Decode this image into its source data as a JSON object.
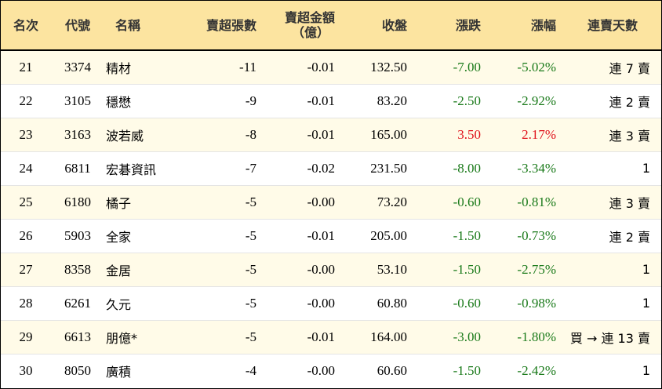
{
  "headers": {
    "rank": "名次",
    "code": "代號",
    "name": "名稱",
    "net_shares": "賣超張數",
    "net_amount_line1": "賣超金額",
    "net_amount_line2": "（億）",
    "close": "收盤",
    "change": "漲跌",
    "change_pct": "漲幅",
    "consecutive_days": "連賣天數"
  },
  "colors": {
    "header_bg": "#fce4a0",
    "row_alt_bg": "#fffbe8",
    "up": "#e0101a",
    "down": "#1a7a1a"
  },
  "rows": [
    {
      "rank": "21",
      "code": "3374",
      "name": "精材",
      "net_shares": "-11",
      "net_amount": "-0.01",
      "close": "132.50",
      "change": "-7.00",
      "change_pct": "-5.02%",
      "days": "連 7 賣",
      "dir": "down"
    },
    {
      "rank": "22",
      "code": "3105",
      "name": "穩懋",
      "net_shares": "-9",
      "net_amount": "-0.01",
      "close": "83.20",
      "change": "-2.50",
      "change_pct": "-2.92%",
      "days": "連 2 賣",
      "dir": "down"
    },
    {
      "rank": "23",
      "code": "3163",
      "name": "波若威",
      "net_shares": "-8",
      "net_amount": "-0.01",
      "close": "165.00",
      "change": "3.50",
      "change_pct": "2.17%",
      "days": "連 3 賣",
      "dir": "up"
    },
    {
      "rank": "24",
      "code": "6811",
      "name": "宏碁資訊",
      "net_shares": "-7",
      "net_amount": "-0.02",
      "close": "231.50",
      "change": "-8.00",
      "change_pct": "-3.34%",
      "days": "1",
      "dir": "down"
    },
    {
      "rank": "25",
      "code": "6180",
      "name": "橘子",
      "net_shares": "-5",
      "net_amount": "-0.00",
      "close": "73.20",
      "change": "-0.60",
      "change_pct": "-0.81%",
      "days": "連 3 賣",
      "dir": "down"
    },
    {
      "rank": "26",
      "code": "5903",
      "name": "全家",
      "net_shares": "-5",
      "net_amount": "-0.01",
      "close": "205.00",
      "change": "-1.50",
      "change_pct": "-0.73%",
      "days": "連 2 賣",
      "dir": "down"
    },
    {
      "rank": "27",
      "code": "8358",
      "name": "金居",
      "net_shares": "-5",
      "net_amount": "-0.00",
      "close": "53.10",
      "change": "-1.50",
      "change_pct": "-2.75%",
      "days": "1",
      "dir": "down"
    },
    {
      "rank": "28",
      "code": "6261",
      "name": "久元",
      "net_shares": "-5",
      "net_amount": "-0.00",
      "close": "60.80",
      "change": "-0.60",
      "change_pct": "-0.98%",
      "days": "1",
      "dir": "down"
    },
    {
      "rank": "29",
      "code": "6613",
      "name": "朋億*",
      "net_shares": "-5",
      "net_amount": "-0.01",
      "close": "164.00",
      "change": "-3.00",
      "change_pct": "-1.80%",
      "days": "買 → 連 13 賣",
      "dir": "down"
    },
    {
      "rank": "30",
      "code": "8050",
      "name": "廣積",
      "net_shares": "-4",
      "net_amount": "-0.00",
      "close": "60.60",
      "change": "-1.50",
      "change_pct": "-2.42%",
      "days": "1",
      "dir": "down"
    }
  ]
}
